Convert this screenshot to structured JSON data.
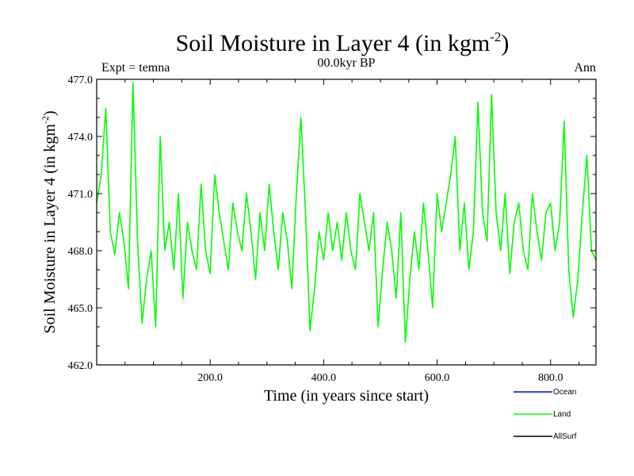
{
  "chart_data": {
    "type": "line",
    "title": "Soil Moisture in Layer 4 (in kgm",
    "title_sup": "-2",
    "title_close": ")",
    "subtitle": "00.0kyr BP",
    "left_label": "Expt = temna",
    "right_label": "Ann",
    "xlabel": "Time (in years since start)",
    "ylabel": "Soil Moisture in Layer 4 (in kgm",
    "ylabel_sup": "-2",
    "ylabel_close": ")",
    "xlim": [
      0,
      880
    ],
    "ylim": [
      462.0,
      477.0
    ],
    "x_ticks": [
      200,
      400,
      600,
      800
    ],
    "x_tick_labels": [
      "200.0",
      "400.0",
      "600.0",
      "800.0"
    ],
    "y_ticks": [
      462,
      465,
      468,
      471,
      474,
      477
    ],
    "y_tick_labels": [
      "462.0",
      "465.0",
      "468.0",
      "471.0",
      "474.0",
      "477.0"
    ],
    "grid": false,
    "legend_position": "bottom-right",
    "series": [
      {
        "name": "Ocean",
        "color": "#0000ff",
        "values": []
      },
      {
        "name": "Land",
        "color": "#00ff00",
        "x_start": 0,
        "x_step": 8,
        "values": [
          470.5,
          472.0,
          475.5,
          469.0,
          467.8,
          470.0,
          468.5,
          466.0,
          476.8,
          468.5,
          464.2,
          466.5,
          468.0,
          464.0,
          474.0,
          468.0,
          469.5,
          467.0,
          471.0,
          465.5,
          469.5,
          468.0,
          467.0,
          471.5,
          468.0,
          466.8,
          472.0,
          470.0,
          468.5,
          467.0,
          470.5,
          469.0,
          468.0,
          471.0,
          469.0,
          466.5,
          470.0,
          468.0,
          471.5,
          469.0,
          467.0,
          470.0,
          468.5,
          466.0,
          471.0,
          475.0,
          470.0,
          463.8,
          466.0,
          469.0,
          467.5,
          470.0,
          468.0,
          469.5,
          467.5,
          470.0,
          468.0,
          467.0,
          471.0,
          469.5,
          468.0,
          470.0,
          464.0,
          467.0,
          469.5,
          468.0,
          465.5,
          470.0,
          463.2,
          466.5,
          469.0,
          467.0,
          470.5,
          468.0,
          465.0,
          471.0,
          469.0,
          470.5,
          472.0,
          474.0,
          468.0,
          470.5,
          467.0,
          469.0,
          475.8,
          470.0,
          468.5,
          476.2,
          470.0,
          468.0,
          471.0,
          466.8,
          469.5,
          470.5,
          468.0,
          467.0,
          471.0,
          469.0,
          467.5,
          470.0,
          470.5,
          468.0,
          469.5,
          474.8,
          467.0,
          464.5,
          466.5,
          470.0,
          473.0,
          468.0,
          467.5
        ]
      },
      {
        "name": "AllSurf",
        "color": "#000000",
        "values": []
      }
    ]
  }
}
